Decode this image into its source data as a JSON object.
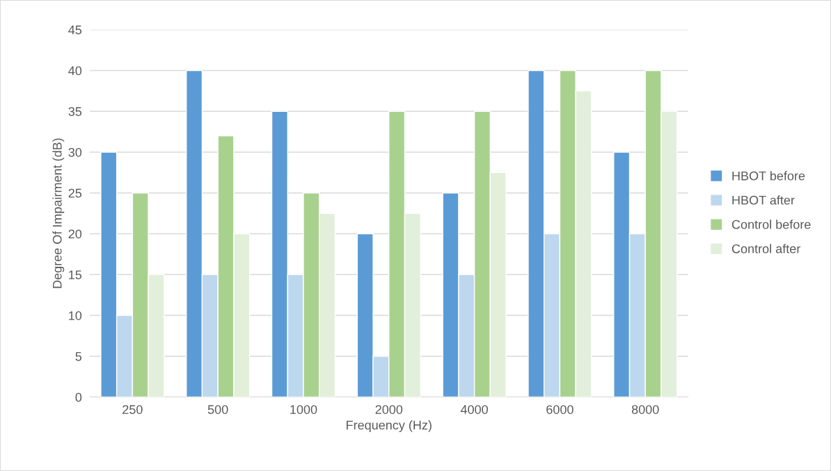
{
  "chart_data": {
    "type": "bar",
    "xlabel": "Frequency (Hz)",
    "ylabel": "Degree Of Impairment (dB)",
    "categories": [
      "250",
      "500",
      "1000",
      "2000",
      "4000",
      "6000",
      "8000"
    ],
    "series": [
      {
        "name": "HBOT before",
        "color": "#5b9bd5",
        "values": [
          30,
          40,
          35,
          20,
          25,
          40,
          30
        ]
      },
      {
        "name": "HBOT after",
        "color": "#bdd7ee",
        "values": [
          10,
          15,
          15,
          5,
          15,
          20,
          20
        ]
      },
      {
        "name": "Control before",
        "color": "#a9d18e",
        "values": [
          25,
          32,
          25,
          35,
          35,
          40,
          40
        ]
      },
      {
        "name": "Control after",
        "color": "#e2efda",
        "values": [
          15,
          20,
          22.5,
          22.5,
          27.5,
          37.5,
          35
        ]
      }
    ],
    "ylim": [
      0,
      45
    ],
    "yticks": [
      0,
      5,
      10,
      15,
      20,
      25,
      30,
      35,
      40,
      45
    ],
    "grid": "y",
    "legend": "right"
  }
}
